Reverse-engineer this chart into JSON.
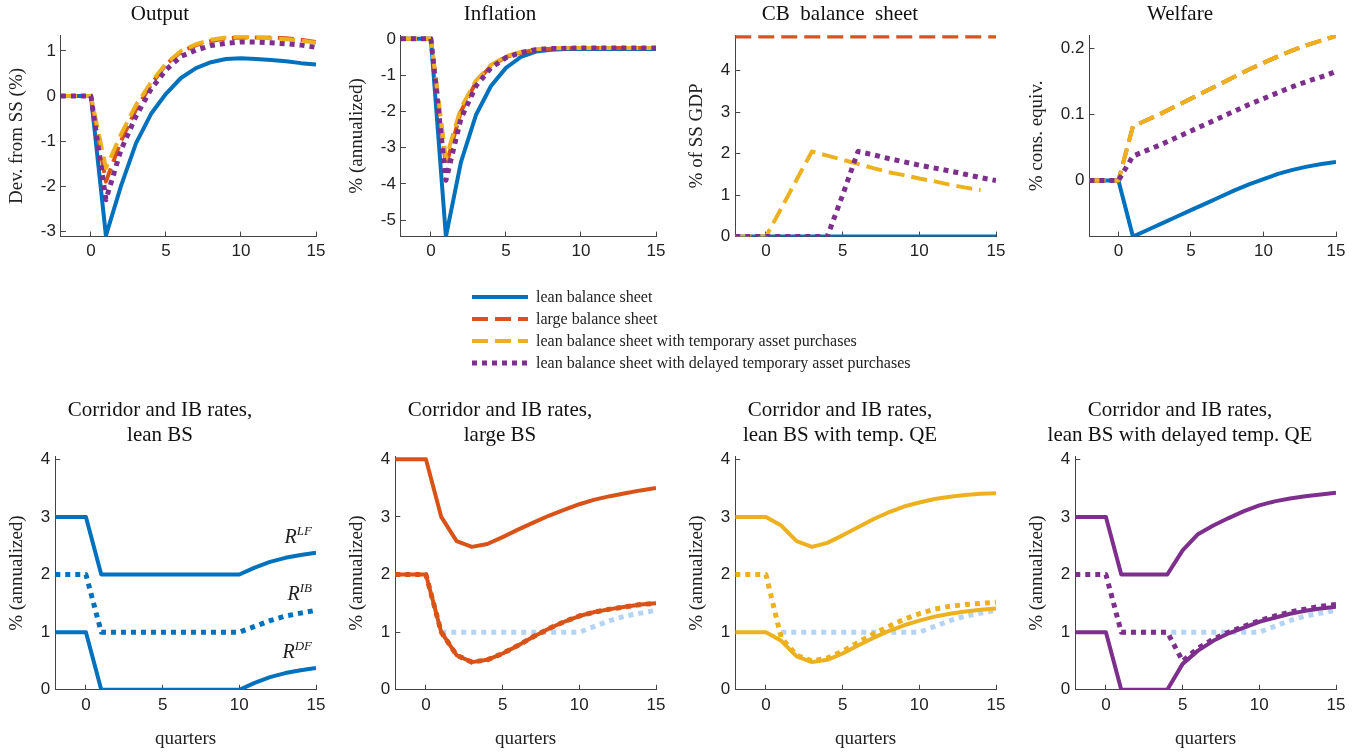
{
  "chart_data": [
    {
      "type": "line",
      "title": "Output",
      "ylabel": "Dev. from SS (%)",
      "legend": "bottom",
      "x": [
        -2,
        -1,
        0,
        1,
        2,
        3,
        4,
        5,
        6,
        7,
        8,
        9,
        10,
        11,
        12,
        13,
        14,
        15
      ],
      "xlim": [
        -2,
        15
      ],
      "xticks": [
        0,
        5,
        10,
        15
      ],
      "ylim": [
        -3.12,
        1.35
      ],
      "yticks": [
        -3,
        -2,
        -1,
        0,
        1
      ],
      "series": [
        {
          "name": "lean balance sheet",
          "color": "#0072bd",
          "line_style": "solid",
          "values": [
            0,
            0,
            0,
            -3.1,
            -2.0,
            -1.05,
            -0.4,
            0.05,
            0.4,
            0.62,
            0.75,
            0.82,
            0.84,
            0.82,
            0.8,
            0.77,
            0.73,
            0.7
          ]
        },
        {
          "name": "large balance sheet",
          "color": "#d95319",
          "line_style": "dashed",
          "values": [
            0,
            0,
            0,
            -1.9,
            -1.0,
            -0.3,
            0.25,
            0.7,
            0.98,
            1.13,
            1.22,
            1.28,
            1.3,
            1.3,
            1.3,
            1.28,
            1.25,
            1.2
          ]
        },
        {
          "name": "lean balance sheet with temporary asset purchases",
          "color": "#edb120",
          "line_style": "dashed",
          "values": [
            0,
            0,
            0,
            -1.6,
            -0.85,
            -0.2,
            0.3,
            0.72,
            1.0,
            1.15,
            1.25,
            1.3,
            1.32,
            1.3,
            1.28,
            1.26,
            1.23,
            1.18
          ]
        },
        {
          "name": "lean balance sheet with delayed temporary asset purchases",
          "color": "#7e2f8e",
          "line_style": "dotted",
          "values": [
            0,
            0,
            0,
            -2.3,
            -1.2,
            -0.45,
            0.15,
            0.58,
            0.88,
            1.02,
            1.12,
            1.17,
            1.2,
            1.2,
            1.18,
            1.16,
            1.13,
            1.08
          ]
        }
      ]
    },
    {
      "type": "line",
      "title": "Inflation",
      "ylabel": "% (annualized)",
      "x": [
        -2,
        -1,
        0,
        1,
        2,
        3,
        4,
        5,
        6,
        7,
        8,
        9,
        10,
        11,
        12,
        13,
        14,
        15
      ],
      "xlim": [
        -2,
        15
      ],
      "xticks": [
        0,
        5,
        10,
        15
      ],
      "ylim": [
        -5.45,
        0.1
      ],
      "yticks": [
        -5,
        -4,
        -3,
        -2,
        -1,
        0
      ],
      "series": [
        {
          "color": "#0072bd",
          "line_style": "solid",
          "values": [
            0,
            0,
            0,
            -5.45,
            -3.4,
            -2.1,
            -1.3,
            -0.8,
            -0.5,
            -0.35,
            -0.3,
            -0.28,
            -0.28,
            -0.28,
            -0.28,
            -0.28,
            -0.28,
            -0.28
          ]
        },
        {
          "color": "#d95319",
          "line_style": "dashed",
          "values": [
            0,
            0,
            0,
            -3.5,
            -2.0,
            -1.2,
            -0.75,
            -0.5,
            -0.38,
            -0.3,
            -0.27,
            -0.26,
            -0.25,
            -0.25,
            -0.25,
            -0.25,
            -0.25,
            -0.25
          ]
        },
        {
          "color": "#edb120",
          "line_style": "dashed",
          "values": [
            0,
            0,
            0,
            -3.3,
            -1.9,
            -1.15,
            -0.72,
            -0.48,
            -0.36,
            -0.29,
            -0.26,
            -0.25,
            -0.25,
            -0.25,
            -0.25,
            -0.25,
            -0.25,
            -0.25
          ]
        },
        {
          "color": "#7e2f8e",
          "line_style": "dotted",
          "values": [
            0,
            0,
            0,
            -3.9,
            -2.2,
            -1.3,
            -0.8,
            -0.52,
            -0.38,
            -0.3,
            -0.27,
            -0.26,
            -0.25,
            -0.25,
            -0.25,
            -0.25,
            -0.25,
            -0.25
          ]
        }
      ]
    },
    {
      "type": "line",
      "title": "CB  balance  sheet",
      "ylabel": "% of SS GDP",
      "x": [
        -2,
        -1,
        0,
        1,
        2,
        3,
        4,
        5,
        6,
        7,
        8,
        9,
        10,
        11,
        12,
        13,
        14,
        15
      ],
      "xlim": [
        -2,
        15
      ],
      "xticks": [
        0,
        5,
        10,
        15
      ],
      "ylim": [
        0,
        4.85
      ],
      "yticks": [
        0,
        1,
        2,
        3,
        4
      ],
      "series": [
        {
          "color": "#0072bd",
          "line_style": "solid",
          "values": [
            0,
            0,
            0,
            0,
            0,
            0,
            0,
            0,
            0,
            0,
            0,
            0,
            0,
            0,
            0,
            0,
            0,
            0
          ]
        },
        {
          "color": "#d95319",
          "line_style": "dashed",
          "values": [
            4.82,
            4.82,
            4.82,
            4.82,
            4.82,
            4.82,
            4.82,
            4.82,
            4.82,
            4.82,
            4.82,
            4.82,
            4.82,
            4.82,
            4.82,
            4.82,
            4.82,
            4.82
          ]
        },
        {
          "color": "#edb120",
          "line_style": "dashed",
          "values": [
            0,
            0,
            0,
            0.68,
            1.37,
            2.05,
            1.95,
            1.85,
            1.75,
            1.65,
            1.55,
            1.48,
            1.4,
            1.33,
            1.25,
            1.18,
            1.12,
            null
          ]
        },
        {
          "color": "#7e2f8e",
          "line_style": "dotted",
          "values": [
            0,
            0,
            0,
            0,
            0,
            0,
            0,
            1.0,
            2.05,
            1.97,
            1.88,
            1.8,
            1.72,
            1.65,
            1.58,
            1.5,
            1.42,
            1.35
          ]
        }
      ]
    },
    {
      "type": "line",
      "title": "Welfare",
      "ylabel": "% cons. equiv.",
      "x": [
        -2,
        -1,
        0,
        1,
        2,
        3,
        4,
        5,
        6,
        7,
        8,
        9,
        10,
        11,
        12,
        13,
        14,
        15
      ],
      "xlim": [
        -2,
        15
      ],
      "xticks": [
        0,
        5,
        10,
        15
      ],
      "ylim": [
        -0.085,
        0.22
      ],
      "yticks": [
        0,
        0.1,
        0.2
      ],
      "series": [
        {
          "color": "#0072bd",
          "line_style": "solid",
          "values": [
            0,
            0,
            0,
            -0.085,
            -0.075,
            -0.065,
            -0.055,
            -0.045,
            -0.035,
            -0.025,
            -0.015,
            -0.006,
            0.002,
            0.01,
            0.016,
            0.021,
            0.025,
            0.028
          ]
        },
        {
          "color": "#d95319",
          "line_style": "dashed",
          "values": [
            0,
            0,
            0,
            0.082,
            0.092,
            0.102,
            0.113,
            0.124,
            0.135,
            0.146,
            0.157,
            0.168,
            0.178,
            0.188,
            0.197,
            0.205,
            0.212,
            0.219
          ]
        },
        {
          "color": "#edb120",
          "line_style": "dashed",
          "values": [
            0,
            0,
            0,
            0.082,
            0.092,
            0.102,
            0.113,
            0.124,
            0.135,
            0.146,
            0.157,
            0.168,
            0.178,
            0.188,
            0.197,
            0.205,
            0.212,
            0.219
          ]
        },
        {
          "color": "#7e2f8e",
          "line_style": "dotted",
          "values": [
            0,
            0,
            0,
            0.037,
            0.046,
            0.055,
            0.065,
            0.075,
            0.085,
            0.095,
            0.105,
            0.115,
            0.124,
            0.133,
            0.142,
            0.15,
            0.157,
            0.165
          ]
        }
      ]
    },
    {
      "type": "line",
      "title": "Corridor and IB rates,\nlean BS",
      "xlabel": "quarters",
      "ylabel": "% (annualized)",
      "x": [
        -2,
        -1,
        0,
        1,
        2,
        3,
        4,
        5,
        6,
        7,
        8,
        9,
        10,
        11,
        12,
        13,
        14,
        15
      ],
      "xlim": [
        -2,
        15
      ],
      "xticks": [
        0,
        5,
        10,
        15
      ],
      "ylim": [
        0,
        4.05
      ],
      "yticks": [
        0,
        1,
        2,
        3,
        4
      ],
      "series": [
        {
          "name": "R$^{LF}$",
          "color": "#0072bd",
          "line_style": "solid",
          "values": [
            3,
            3,
            3,
            2,
            2,
            2,
            2,
            2,
            2,
            2,
            2,
            2,
            2,
            2.12,
            2.22,
            2.29,
            2.34,
            2.38
          ]
        },
        {
          "name": "R$^{DF}$",
          "color": "#0072bd",
          "line_style": "solid",
          "values": [
            1,
            1,
            1,
            0,
            0,
            0,
            0,
            0,
            0,
            0,
            0,
            0,
            0,
            0.12,
            0.22,
            0.29,
            0.34,
            0.38
          ]
        },
        {
          "name": "R$^{IB}$",
          "color": "#0072bd",
          "line_style": "dotted",
          "values": [
            2,
            2,
            2,
            1,
            1,
            1,
            1,
            1,
            1,
            1,
            1,
            1,
            1,
            1.1,
            1.2,
            1.28,
            1.33,
            1.38
          ]
        }
      ]
    },
    {
      "type": "line",
      "title": "Corridor and IB rates,\nlarge BS",
      "xlabel": "quarters",
      "ylabel": "% (annualized)",
      "x": [
        -2,
        -1,
        0,
        1,
        2,
        3,
        4,
        5,
        6,
        7,
        8,
        9,
        10,
        11,
        12,
        13,
        14,
        15
      ],
      "xlim": [
        -2,
        15
      ],
      "xticks": [
        0,
        5,
        10,
        15
      ],
      "ylim": [
        0,
        4.05
      ],
      "yticks": [
        0,
        1,
        2,
        3,
        4
      ],
      "series": [
        {
          "color": "#b5d3f2",
          "line_style": "dotted",
          "values": [
            null,
            null,
            null,
            1,
            1,
            1,
            1,
            1,
            1,
            1,
            1,
            1,
            1,
            1.1,
            1.2,
            1.28,
            1.33,
            1.38
          ]
        },
        {
          "color": "#d95319",
          "line_style": "solid",
          "values": [
            4,
            4,
            4,
            3.0,
            2.58,
            2.48,
            2.53,
            2.65,
            2.78,
            2.9,
            3.02,
            3.12,
            3.22,
            3.3,
            3.36,
            3.41,
            3.46,
            3.5
          ]
        },
        {
          "color": "#d95319",
          "line_style": "solid",
          "values": [
            2,
            2,
            2,
            1.0,
            0.6,
            0.48,
            0.52,
            0.63,
            0.77,
            0.92,
            1.06,
            1.18,
            1.28,
            1.35,
            1.4,
            1.44,
            1.48,
            1.5
          ]
        },
        {
          "color": "#d95319",
          "line_style": "dotted",
          "values": [
            2,
            2,
            2,
            1.0,
            0.6,
            0.48,
            0.52,
            0.63,
            0.77,
            0.92,
            1.06,
            1.18,
            1.28,
            1.35,
            1.4,
            1.44,
            1.48,
            1.5
          ]
        }
      ]
    },
    {
      "type": "line",
      "title": "Corridor and IB rates,\nlean BS with temp. QE",
      "xlabel": "quarters",
      "ylabel": "% (annualized)",
      "x": [
        -2,
        -1,
        0,
        1,
        2,
        3,
        4,
        5,
        6,
        7,
        8,
        9,
        10,
        11,
        12,
        13,
        14,
        15
      ],
      "xlim": [
        -2,
        15
      ],
      "xticks": [
        0,
        5,
        10,
        15
      ],
      "ylim": [
        0,
        4.05
      ],
      "yticks": [
        0,
        1,
        2,
        3,
        4
      ],
      "series": [
        {
          "color": "#b5d3f2",
          "line_style": "dotted",
          "values": [
            null,
            null,
            null,
            1,
            1,
            1,
            1,
            1,
            1,
            1,
            1,
            1,
            1,
            1.1,
            1.2,
            1.28,
            1.33,
            1.38
          ]
        },
        {
          "color": "#edb120",
          "line_style": "solid",
          "values": [
            3,
            3,
            3,
            2.85,
            2.58,
            2.48,
            2.55,
            2.68,
            2.82,
            2.96,
            3.08,
            3.18,
            3.25,
            3.31,
            3.35,
            3.38,
            3.4,
            3.41
          ]
        },
        {
          "color": "#edb120",
          "line_style": "solid",
          "values": [
            1,
            1,
            1,
            0.85,
            0.58,
            0.48,
            0.52,
            0.63,
            0.77,
            0.9,
            1.02,
            1.12,
            1.2,
            1.27,
            1.32,
            1.36,
            1.39,
            1.41
          ]
        },
        {
          "color": "#edb120",
          "line_style": "dotted",
          "values": [
            2,
            2,
            2,
            0.9,
            0.6,
            0.5,
            0.55,
            0.67,
            0.82,
            0.97,
            1.1,
            1.22,
            1.32,
            1.4,
            1.45,
            1.48,
            1.5,
            1.52
          ]
        }
      ]
    },
    {
      "type": "line",
      "title": "Corridor and IB rates,\nlean BS with delayed temp. QE",
      "xlabel": "quarters",
      "ylabel": "% (annualized)",
      "x": [
        -2,
        -1,
        0,
        1,
        2,
        3,
        4,
        5,
        6,
        7,
        8,
        9,
        10,
        11,
        12,
        13,
        14,
        15
      ],
      "xlim": [
        -2,
        15
      ],
      "xticks": [
        0,
        5,
        10,
        15
      ],
      "ylim": [
        0,
        4.05
      ],
      "yticks": [
        0,
        1,
        2,
        3,
        4
      ],
      "series": [
        {
          "color": "#b5d3f2",
          "line_style": "dotted",
          "values": [
            null,
            null,
            null,
            1,
            1,
            1,
            1,
            1,
            1,
            1,
            1,
            1,
            1,
            1.1,
            1.2,
            1.28,
            1.33,
            1.38
          ]
        },
        {
          "color": "#7e2f8e",
          "line_style": "solid",
          "values": [
            3,
            3,
            3,
            2,
            2,
            2,
            2,
            2.42,
            2.7,
            2.85,
            2.98,
            3.1,
            3.2,
            3.27,
            3.32,
            3.36,
            3.39,
            3.42
          ]
        },
        {
          "color": "#7e2f8e",
          "line_style": "solid",
          "values": [
            1,
            1,
            1,
            0,
            0,
            0,
            0,
            0.45,
            0.68,
            0.85,
            0.98,
            1.08,
            1.18,
            1.25,
            1.32,
            1.37,
            1.41,
            1.44
          ]
        },
        {
          "color": "#7e2f8e",
          "line_style": "dotted",
          "values": [
            2,
            2,
            2,
            1,
            1,
            1,
            1,
            0.5,
            0.72,
            0.88,
            1.0,
            1.1,
            1.2,
            1.28,
            1.35,
            1.4,
            1.45,
            1.48
          ]
        }
      ]
    }
  ]
}
